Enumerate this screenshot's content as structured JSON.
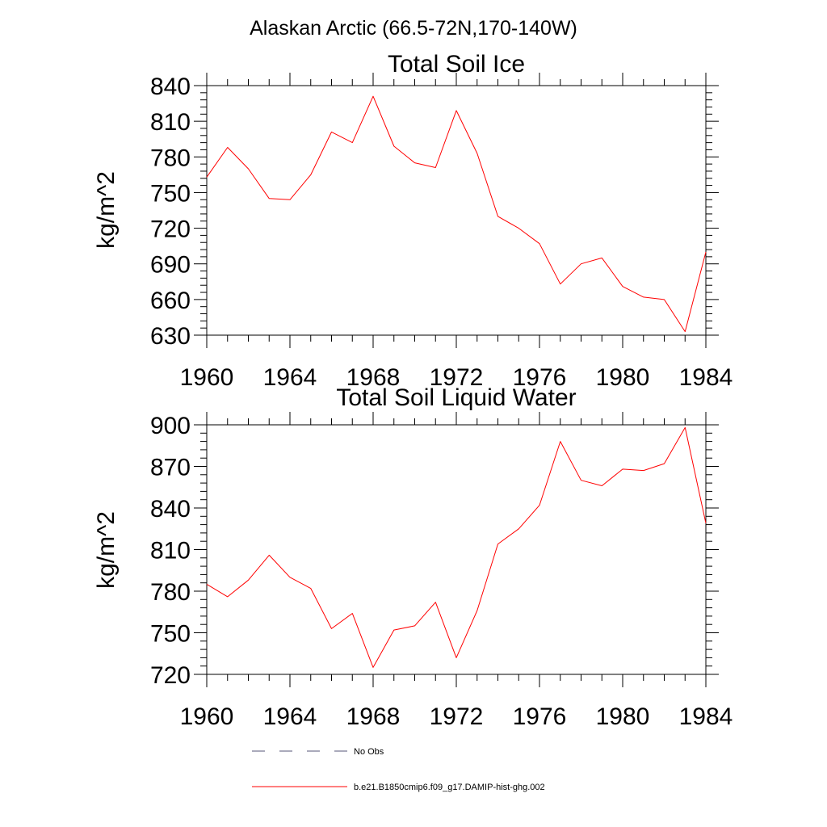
{
  "figure": {
    "suptitle": "Alaskan Arctic (66.5-72N,170-140W)"
  },
  "legend": {
    "entries": [
      {
        "label": "No Obs",
        "color": "#555577",
        "dash": true
      },
      {
        "label": "b.e21.B1850cmip6.f09_g17.DAMIP-hist-ghg.002",
        "color": "#ff0000",
        "dash": false
      }
    ]
  },
  "chart_data": [
    {
      "type": "line",
      "title": "Total Soil Ice",
      "xlabel": "",
      "ylabel": "kg/m^2",
      "xlim": [
        1960,
        1984
      ],
      "ylim": [
        630,
        840
      ],
      "xticks": [
        1960,
        1964,
        1968,
        1972,
        1976,
        1980,
        1984
      ],
      "yticks": [
        630,
        660,
        690,
        720,
        750,
        780,
        810,
        840
      ],
      "x": [
        1960,
        1961,
        1962,
        1963,
        1964,
        1965,
        1966,
        1967,
        1968,
        1969,
        1970,
        1971,
        1972,
        1973,
        1974,
        1975,
        1976,
        1977,
        1978,
        1979,
        1980,
        1981,
        1982,
        1983,
        1984
      ],
      "series": [
        {
          "name": "b.e21.B1850cmip6.f09_g17.DAMIP-hist-ghg.002",
          "color": "#ff0000",
          "values": [
            763,
            788,
            770,
            745,
            744,
            765,
            801,
            792,
            831,
            789,
            775,
            771,
            819,
            783,
            730,
            720,
            707,
            673,
            690,
            695,
            671,
            662,
            660,
            633,
            700
          ]
        }
      ]
    },
    {
      "type": "line",
      "title": "Total Soil Liquid Water",
      "xlabel": "",
      "ylabel": "kg/m^2",
      "xlim": [
        1960,
        1984
      ],
      "ylim": [
        720,
        900
      ],
      "xticks": [
        1960,
        1964,
        1968,
        1972,
        1976,
        1980,
        1984
      ],
      "yticks": [
        720,
        750,
        780,
        810,
        840,
        870,
        900
      ],
      "x": [
        1960,
        1961,
        1962,
        1963,
        1964,
        1965,
        1966,
        1967,
        1968,
        1969,
        1970,
        1971,
        1972,
        1973,
        1974,
        1975,
        1976,
        1977,
        1978,
        1979,
        1980,
        1981,
        1982,
        1983,
        1984
      ],
      "series": [
        {
          "name": "b.e21.B1850cmip6.f09_g17.DAMIP-hist-ghg.002",
          "color": "#ff0000",
          "values": [
            785,
            776,
            788,
            806,
            790,
            782,
            753,
            764,
            725,
            752,
            755,
            772,
            732,
            766,
            814,
            825,
            842,
            888,
            860,
            856,
            868,
            867,
            872,
            898,
            829
          ]
        }
      ]
    }
  ]
}
